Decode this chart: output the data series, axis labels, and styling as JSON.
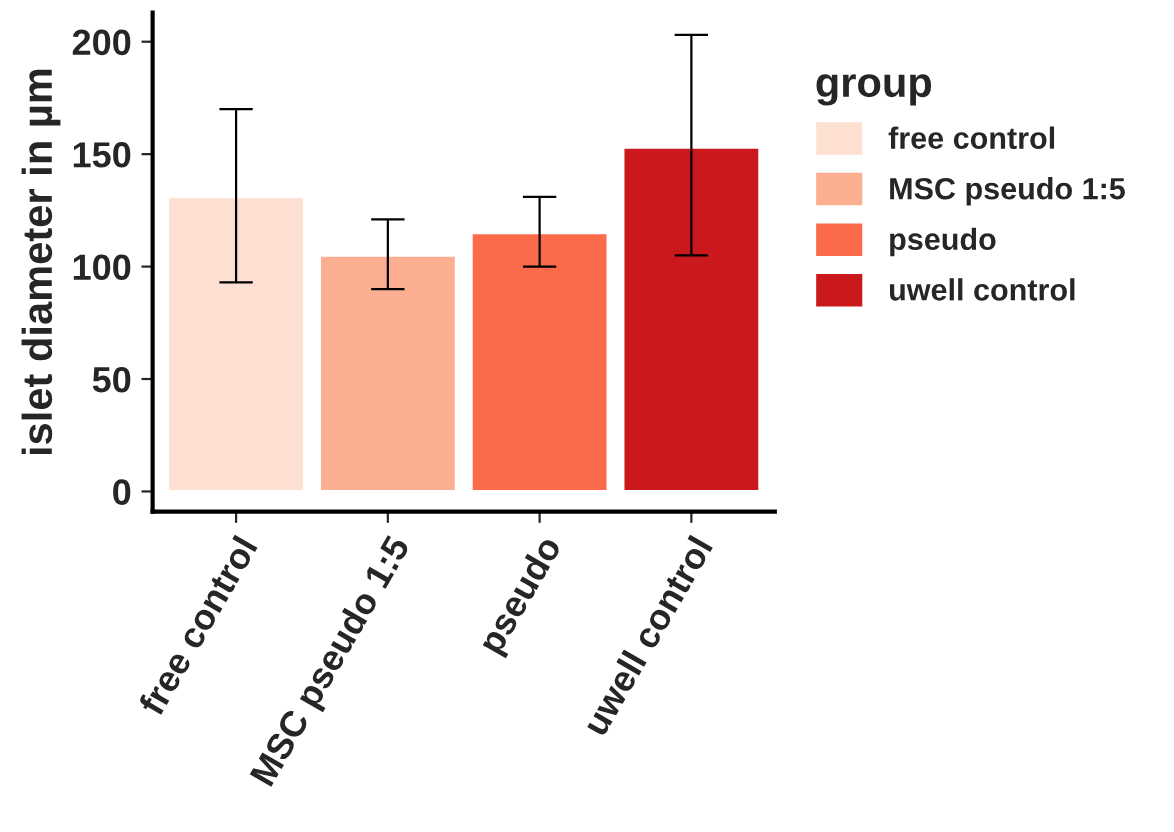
{
  "chart_data": {
    "type": "bar",
    "ylabel": "islet diameter in µm",
    "legend_title": "group",
    "categories": [
      "free control",
      "MSC pseudo 1:5",
      "pseudo",
      "uwell control"
    ],
    "series": [
      {
        "name": "free control",
        "color": "#fee0d2",
        "values": [
          131,
          null,
          null,
          null
        ],
        "errors": [
          [
            93,
            170
          ],
          null,
          null,
          null
        ]
      },
      {
        "name": "MSC pseudo 1:5",
        "color": "#fcae91",
        "values": [
          null,
          105,
          null,
          null
        ],
        "errors": [
          null,
          [
            90,
            121
          ],
          null,
          null
        ]
      },
      {
        "name": "pseudo",
        "color": "#fb6a4a",
        "values": [
          null,
          null,
          115,
          null
        ],
        "errors": [
          null,
          null,
          [
            100,
            131
          ],
          null
        ]
      },
      {
        "name": "uwell control",
        "color": "#cb181d",
        "values": [
          null,
          null,
          null,
          153
        ],
        "errors": [
          null,
          null,
          null,
          [
            105,
            203
          ]
        ]
      }
    ],
    "ylim": [
      -9,
      213
    ],
    "yticks": [
      0,
      50,
      100,
      150,
      200
    ],
    "grid": false,
    "legend": "right"
  }
}
